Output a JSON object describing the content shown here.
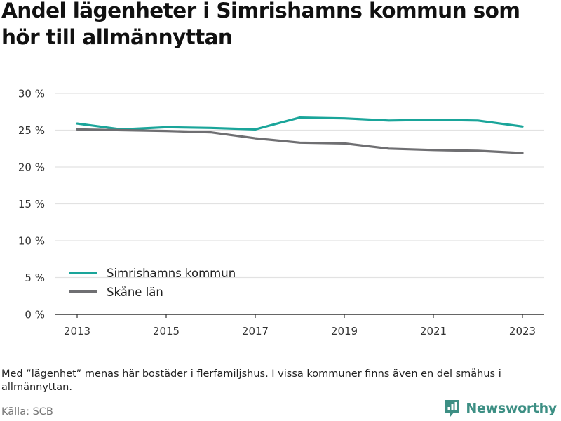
{
  "title": "Andel lägenheter i Simrishamns kommun som hör till allmännyttan",
  "note": "Med ”lägenhet” menas här bostäder i flerfamiljshus. I vissa kommuner finns även en del småhus i allmännyttan.",
  "source": "Källa: SCB",
  "brand": {
    "name": "Newsworthy",
    "icon": "newsworthy-logo-icon",
    "color": "#3d8f84"
  },
  "chart_data": {
    "type": "line",
    "title": "Andel lägenheter i Simrishamns kommun som hör till allmännyttan",
    "xlabel": "",
    "ylabel": "",
    "x": [
      2013,
      2014,
      2015,
      2016,
      2017,
      2018,
      2019,
      2020,
      2021,
      2022,
      2023
    ],
    "x_tick_labels": [
      "2013",
      "2015",
      "2017",
      "2019",
      "2021",
      "2023"
    ],
    "x_tick_values": [
      2013,
      2015,
      2017,
      2019,
      2021,
      2023
    ],
    "y_tick_values": [
      0,
      5,
      10,
      15,
      20,
      25,
      30
    ],
    "y_tick_labels": [
      "0 %",
      "5 %",
      "10 %",
      "15 %",
      "20 %",
      "25 %",
      "30 %"
    ],
    "ylim": [
      0,
      30
    ],
    "grid": true,
    "legend_position": "bottom-left",
    "series": [
      {
        "name": "Simrishamns kommun",
        "color": "#1aa59a",
        "values": [
          25.9,
          25.1,
          25.4,
          25.3,
          25.1,
          26.7,
          26.6,
          26.3,
          26.4,
          26.3,
          25.5
        ]
      },
      {
        "name": "Skåne län",
        "color": "#6f6f72",
        "values": [
          25.1,
          25.0,
          24.9,
          24.7,
          23.9,
          23.3,
          23.2,
          22.5,
          22.3,
          22.2,
          21.9
        ]
      }
    ]
  }
}
